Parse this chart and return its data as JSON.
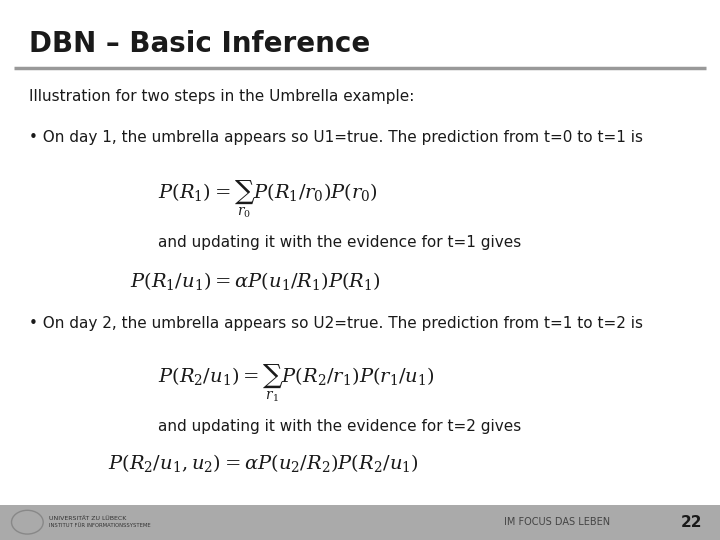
{
  "title": "DBN – Basic Inference",
  "title_fontsize": 20,
  "title_color": "#1a1a1a",
  "bg_color": "#ffffff",
  "footer_bar_color": "#aaaaaa",
  "footer_text": "IM FOCUS DAS LEBEN",
  "page_number": "22",
  "intro_text": "Illustration for two steps in the Umbrella example:",
  "bullet1_text": "• On day 1, the umbrella appears so U1=true. The prediction from t=0 to t=1 is",
  "formula1": "$P(R_1) = \\sum_{r_0} P(R_1 / r_0) P(r_0)$",
  "update1_text": "and updating it with the evidence for t=1 gives",
  "formula2": "$P(R_1 / u_1) = \\alpha P(u_1 / R_1) P(R_1)$",
  "bullet2_text": "• On day 2, the umbrella appears so U2=true. The prediction from t=1 to t=2 is",
  "formula3": "$P(R_2 / u_1) = \\sum_{r_1} P(R_2 / r_1) P(r_1 / u_1)$",
  "update2_text": "and updating it with the evidence for t=2 gives",
  "formula4": "$P(R_2 / u_1, u_2) = \\alpha P(u_2 / R_2) P(R_2 / u_1)$",
  "text_color": "#1a1a1a",
  "formula_color": "#1a1a1a",
  "text_fontsize": 11,
  "formula_fontsize": 14,
  "bullet_fontsize": 11,
  "separator_color": "#999999",
  "separator_linewidth": 2.5
}
